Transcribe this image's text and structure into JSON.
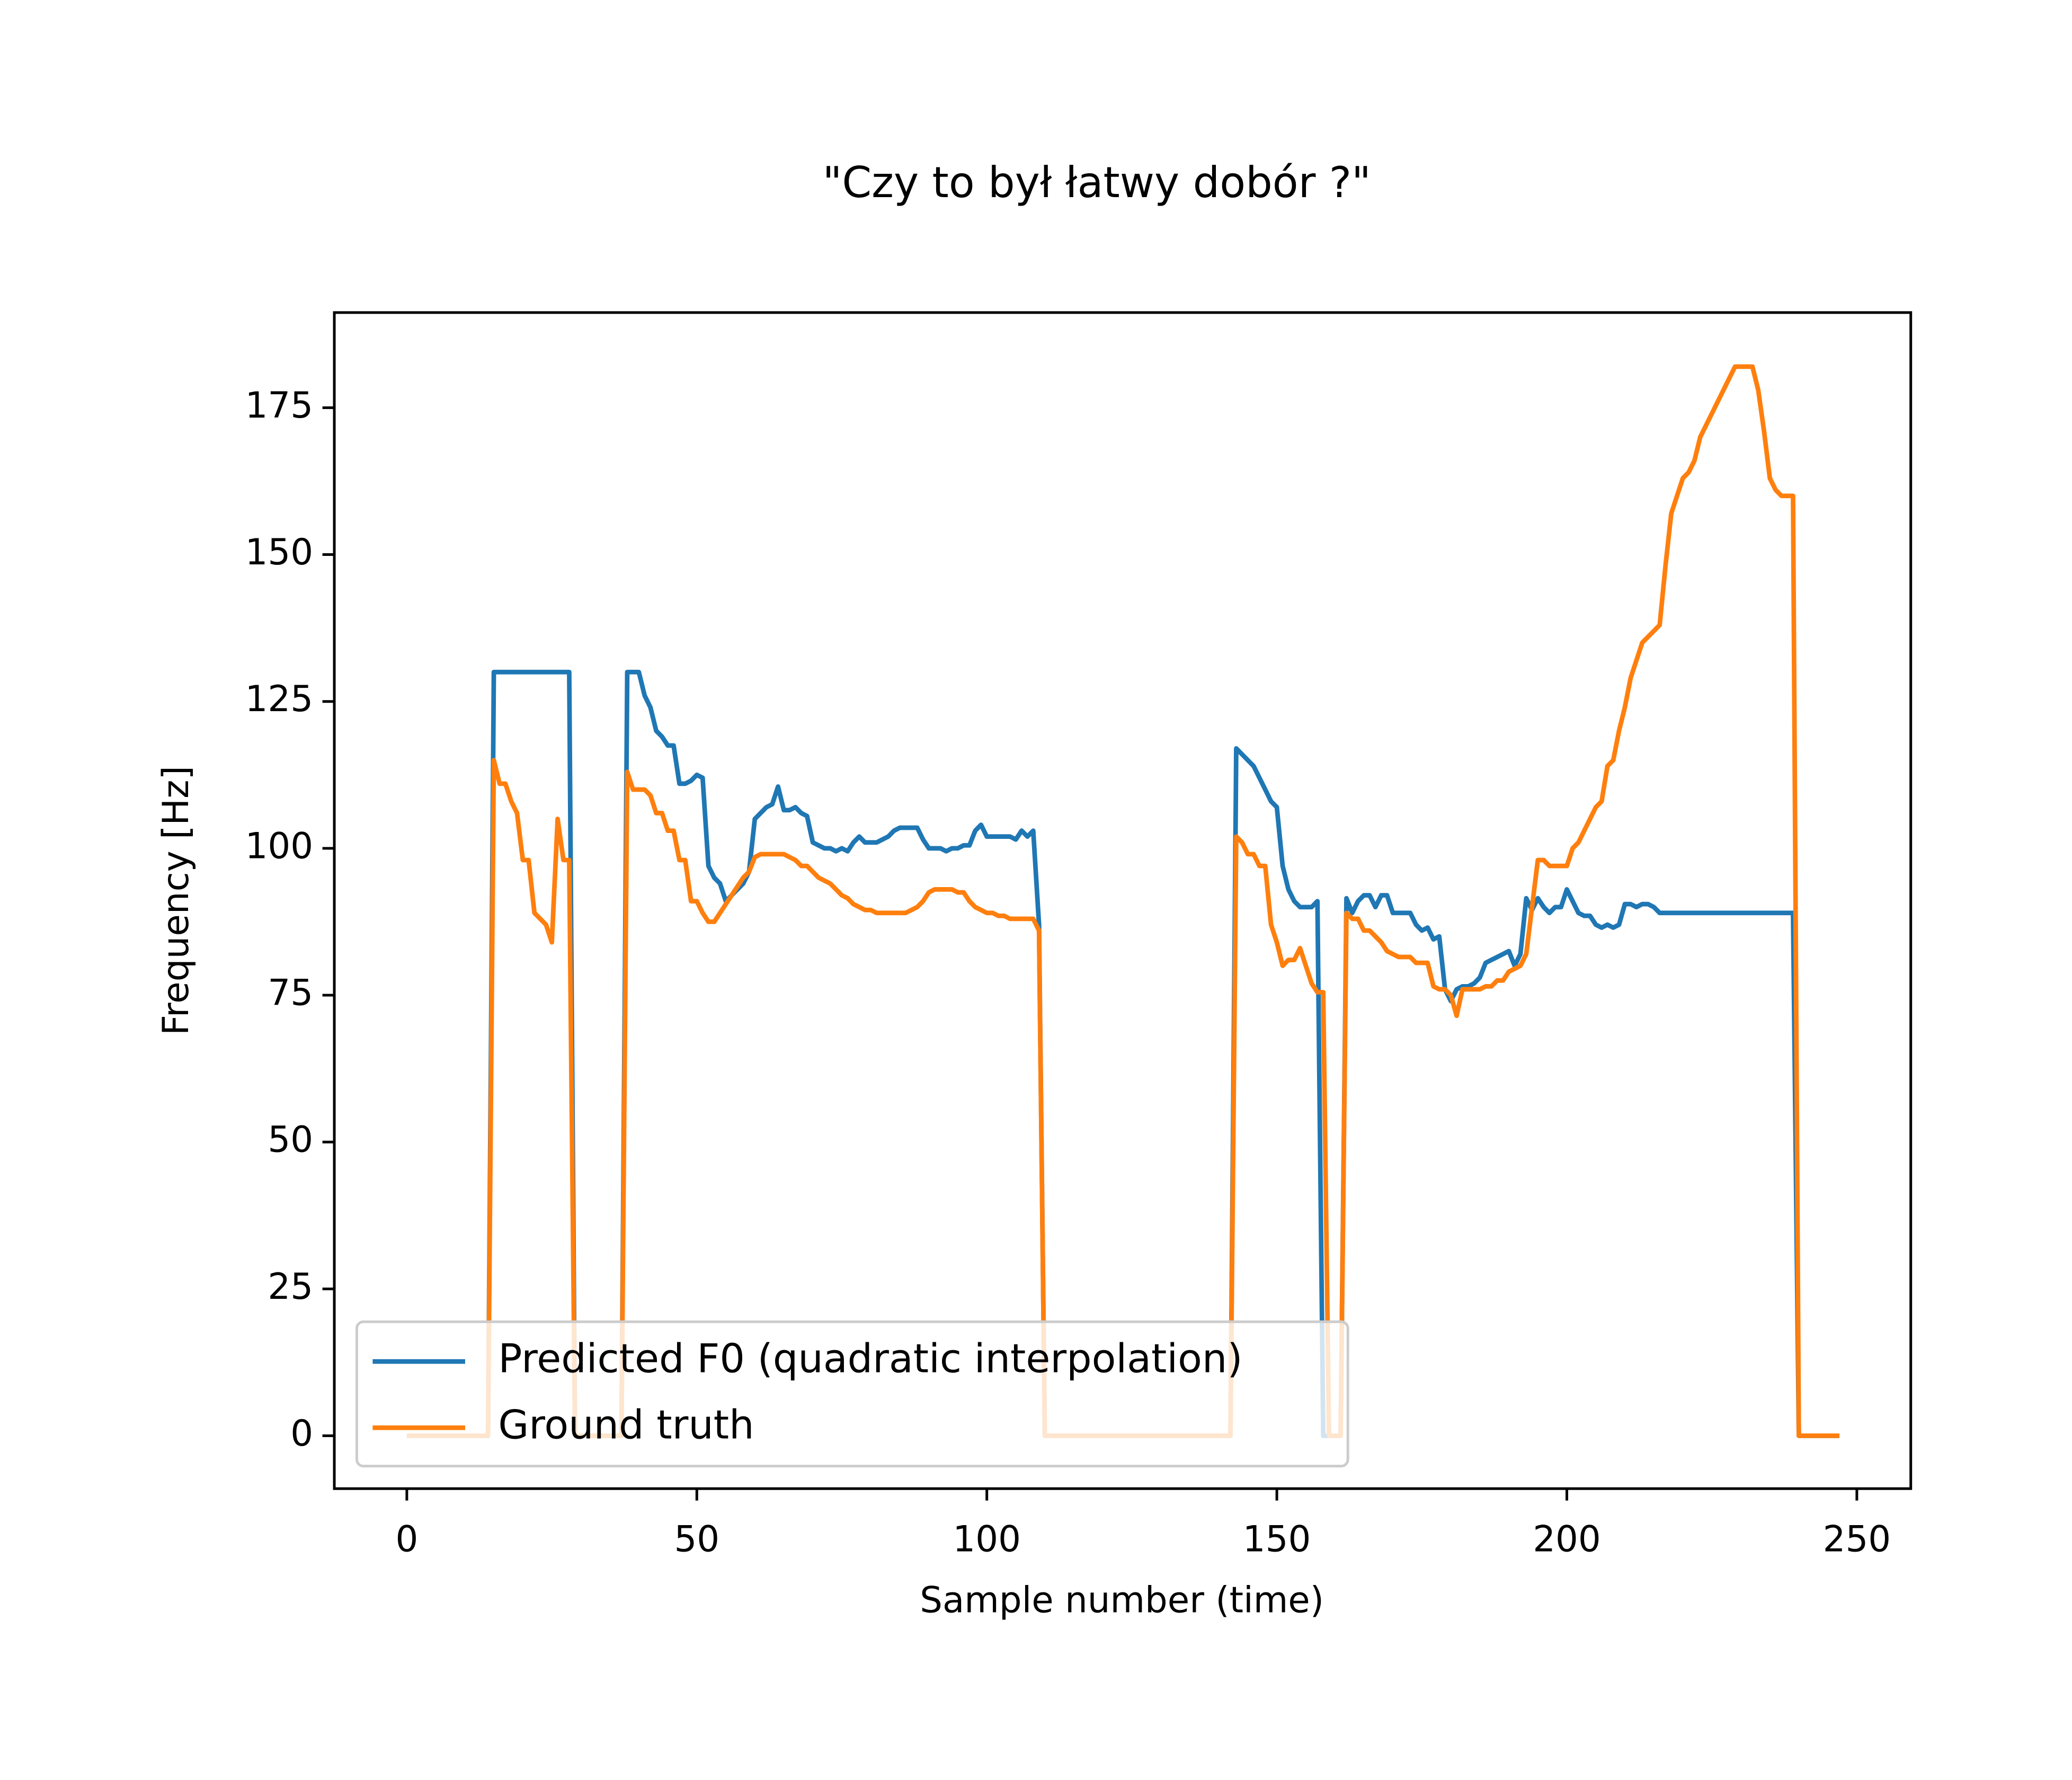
{
  "chart_data": {
    "type": "line",
    "title": "\"Czy to był łatwy dobór ?\"",
    "x_label": "Sample number (time)",
    "y_label": "Frequency [Hz]",
    "x": [
      0,
      14,
      15,
      16,
      17,
      18,
      19,
      20,
      21,
      22,
      23,
      24,
      25,
      26,
      27,
      28,
      29,
      37,
      38,
      39,
      40,
      41,
      42,
      43,
      44,
      45,
      46,
      47,
      48,
      49,
      50,
      51,
      52,
      53,
      54,
      55,
      56,
      57,
      58,
      59,
      60,
      61,
      62,
      63,
      64,
      65,
      66,
      67,
      68,
      69,
      70,
      71,
      72,
      73,
      74,
      75,
      76,
      77,
      78,
      79,
      80,
      81,
      82,
      83,
      84,
      85,
      86,
      87,
      88,
      89,
      90,
      91,
      92,
      93,
      94,
      95,
      96,
      97,
      98,
      99,
      100,
      101,
      102,
      103,
      104,
      105,
      106,
      107,
      108,
      109,
      110,
      142,
      143,
      144,
      145,
      146,
      147,
      148,
      149,
      150,
      151,
      152,
      153,
      154,
      155,
      156,
      157,
      158,
      159,
      160,
      161,
      162,
      163,
      164,
      165,
      166,
      167,
      168,
      169,
      170,
      171,
      172,
      173,
      174,
      175,
      176,
      177,
      178,
      179,
      180,
      181,
      182,
      183,
      184,
      185,
      186,
      187,
      188,
      189,
      190,
      191,
      192,
      193,
      194,
      195,
      196,
      197,
      198,
      199,
      200,
      201,
      202,
      203,
      204,
      205,
      206,
      207,
      208,
      209,
      210,
      211,
      212,
      213,
      214,
      215,
      216,
      217,
      218,
      219,
      220,
      221,
      222,
      223,
      224,
      225,
      226,
      227,
      228,
      229,
      230,
      231,
      232,
      233,
      234,
      235,
      236,
      237,
      238,
      239,
      240,
      247
    ],
    "series": [
      {
        "name": "Predicted F0 (quadratic interpolation)",
        "color": "#1f77b4",
        "values": [
          0,
          0,
          130,
          130,
          130,
          130,
          130,
          130,
          130,
          130,
          130,
          130,
          130,
          130,
          130,
          130,
          0,
          0,
          130,
          130,
          130,
          126,
          124,
          120,
          119,
          117.5,
          117.5,
          111,
          111,
          111.5,
          112.5,
          112,
          97,
          95,
          94,
          91,
          92,
          93,
          94,
          96,
          105,
          106,
          107,
          107.5,
          110.5,
          106.5,
          106.5,
          107,
          106,
          105.5,
          101,
          100.5,
          100,
          100,
          99.5,
          100,
          99.5,
          101,
          102,
          101,
          101,
          101,
          101.5,
          102,
          103,
          103.5,
          103.5,
          103.5,
          103.5,
          101.5,
          100,
          100,
          100,
          99.5,
          100,
          100,
          100.5,
          100.5,
          103,
          104,
          102,
          102,
          102,
          102,
          102,
          101.5,
          103,
          102,
          103,
          87,
          0,
          0,
          117,
          116,
          115,
          114,
          112,
          110,
          108,
          107,
          97,
          93,
          91,
          90,
          90,
          90,
          91,
          0,
          0,
          0,
          0,
          91.5,
          89,
          91,
          92,
          92,
          90,
          92,
          92,
          89,
          89,
          89,
          89,
          87,
          86,
          86.5,
          84.5,
          85,
          76,
          74,
          76,
          76.5,
          76.5,
          77,
          78,
          80.5,
          81,
          81.5,
          82,
          82.5,
          80,
          82,
          91.5,
          89.5,
          91.5,
          90,
          89,
          90,
          90,
          93,
          91,
          89,
          88.5,
          88.5,
          87,
          86.5,
          87,
          86.5,
          87,
          90.5,
          90.5,
          90,
          90.5,
          90.5,
          90,
          89,
          89,
          89,
          89,
          89,
          89,
          89,
          89,
          89,
          89,
          89,
          89,
          89,
          89,
          89,
          89,
          89,
          89,
          89,
          89,
          89,
          89,
          89,
          89,
          0,
          0
        ]
      },
      {
        "name": "Ground truth",
        "color": "#ff7f0e",
        "values": [
          0,
          0,
          115,
          111,
          111,
          108,
          106,
          98,
          98,
          89,
          88,
          87,
          84,
          105,
          98,
          98,
          0,
          0,
          113,
          110,
          110,
          110,
          109,
          106,
          106,
          103,
          103,
          98,
          98,
          91,
          91,
          89,
          87.5,
          87.5,
          89,
          90.5,
          92,
          93.5,
          95,
          96,
          98.5,
          99,
          99,
          99,
          99,
          99,
          98.5,
          98,
          97,
          97,
          96,
          95,
          94.5,
          94,
          93,
          92,
          91.5,
          90.5,
          90,
          89.5,
          89.5,
          89,
          89,
          89,
          89,
          89,
          89,
          89.5,
          90,
          91,
          92.5,
          93,
          93,
          93,
          93,
          92.5,
          92.5,
          91,
          90,
          89.5,
          89,
          89,
          88.5,
          88.5,
          88,
          88,
          88,
          88,
          88,
          86,
          0,
          0,
          102,
          101,
          99,
          99,
          97,
          97,
          87,
          84,
          80,
          81,
          81,
          83,
          80,
          77,
          75.5,
          75.5,
          0,
          0,
          0,
          89,
          88,
          88,
          86,
          86,
          85,
          84,
          82.5,
          82,
          81.5,
          81.5,
          81.5,
          80.5,
          80.5,
          80.5,
          76.5,
          76,
          76,
          75,
          71.5,
          76,
          76,
          76,
          76,
          76.5,
          76.5,
          77.5,
          77.5,
          79,
          79.5,
          80,
          82,
          90,
          98,
          98,
          97,
          97,
          97,
          97,
          100,
          101,
          103,
          105,
          107,
          108,
          114,
          115,
          120,
          124,
          129,
          132,
          135,
          136,
          137,
          138,
          148,
          157,
          160,
          163,
          164,
          166,
          170,
          172,
          174,
          176,
          178,
          180,
          182,
          182,
          182,
          182,
          178,
          171,
          163,
          161,
          160,
          160,
          160,
          0,
          0
        ]
      }
    ],
    "xlim": [
      -12.5,
      259.3
    ],
    "ylim": [
      -9,
      191.2
    ],
    "xticks": [
      0,
      50,
      100,
      150,
      200,
      250
    ],
    "yticks": [
      0,
      25,
      50,
      75,
      100,
      125,
      150,
      175
    ],
    "legend": "lower left"
  }
}
